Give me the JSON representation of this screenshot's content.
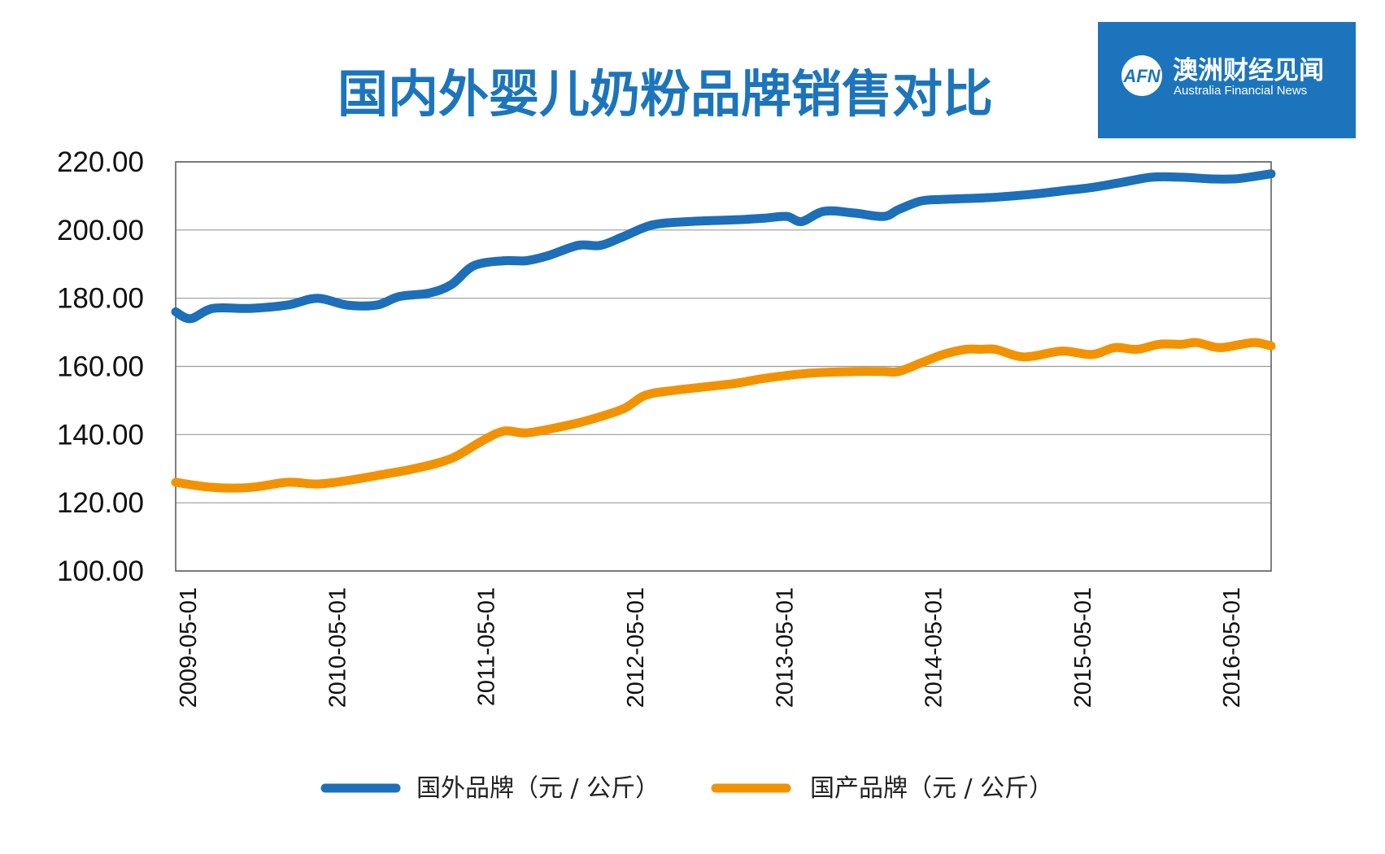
{
  "logo": {
    "mark": "AFN",
    "name_cn": "澳洲财经见闻",
    "name_en": "Australia Financial News",
    "bg_color": "#1c75bc"
  },
  "chart_data": {
    "type": "line",
    "title": "国内外婴儿奶粉品牌销售对比",
    "title_color": "#1c75bc",
    "xlabel": "",
    "ylabel": "",
    "ylim": [
      100,
      220
    ],
    "yticks": [
      "220.00",
      "200.00",
      "180.00",
      "160.00",
      "140.00",
      "120.00",
      "100.00"
    ],
    "ytick_values": [
      220,
      200,
      180,
      160,
      140,
      120,
      100
    ],
    "grid": true,
    "legend_position": "bottom-center",
    "x_start": 2009.25,
    "x_end": 2016.6,
    "xticks": [
      {
        "label": "2009-05-01",
        "x": 2009.333
      },
      {
        "label": "2010-05-01",
        "x": 2010.333
      },
      {
        "label": "2011-05-01",
        "x": 2011.333
      },
      {
        "label": "2012-05-01",
        "x": 2012.333
      },
      {
        "label": "2013-05-01",
        "x": 2013.333
      },
      {
        "label": "2014-05-01",
        "x": 2014.333
      },
      {
        "label": "2015-05-01",
        "x": 2015.333
      },
      {
        "label": "2016-05-01",
        "x": 2016.333
      }
    ],
    "series": [
      {
        "name": "国外品牌（元 / 公斤）",
        "color": "#1c6fb8",
        "x": [
          2009.25,
          2009.35,
          2009.5,
          2009.75,
          2010.0,
          2010.2,
          2010.4,
          2010.6,
          2010.75,
          2010.95,
          2011.1,
          2011.25,
          2011.45,
          2011.6,
          2011.75,
          2011.95,
          2012.1,
          2012.25,
          2012.45,
          2012.7,
          2013.0,
          2013.2,
          2013.35,
          2013.45,
          2013.6,
          2013.8,
          2014.0,
          2014.1,
          2014.25,
          2014.4,
          2014.7,
          2015.0,
          2015.2,
          2015.4,
          2015.6,
          2015.8,
          2016.0,
          2016.2,
          2016.35,
          2016.45,
          2016.6
        ],
        "values": [
          176,
          174,
          177,
          177,
          178,
          180,
          178,
          178,
          180.5,
          181.5,
          184,
          189.5,
          191,
          191,
          192.5,
          195.5,
          195.5,
          198,
          201.5,
          202.5,
          203,
          203.5,
          204,
          202.5,
          205.5,
          205,
          204,
          206,
          208.5,
          209,
          209.5,
          210.5,
          211.5,
          212.5,
          214,
          215.5,
          215.5,
          215,
          215,
          215.5,
          216.5
        ]
      },
      {
        "name": "国产品牌（元 / 公斤）",
        "color": "#f39200",
        "x": [
          2009.25,
          2009.5,
          2009.75,
          2010.0,
          2010.2,
          2010.4,
          2010.6,
          2010.85,
          2011.1,
          2011.3,
          2011.45,
          2011.6,
          2011.8,
          2012.0,
          2012.25,
          2012.4,
          2012.6,
          2013.0,
          2013.2,
          2013.5,
          2013.8,
          2014.0,
          2014.1,
          2014.25,
          2014.4,
          2014.55,
          2014.65,
          2014.75,
          2014.9,
          2015.0,
          2015.2,
          2015.4,
          2015.55,
          2015.7,
          2015.85,
          2016.0,
          2016.1,
          2016.25,
          2016.4,
          2016.5,
          2016.6
        ],
        "values": [
          126,
          124.5,
          124.5,
          126,
          125.5,
          126.5,
          128,
          130,
          133,
          138,
          141,
          140.5,
          142,
          144,
          147.5,
          151.5,
          153,
          155,
          156.5,
          158,
          158.5,
          158.5,
          158.5,
          161,
          163.5,
          165,
          165,
          165,
          163,
          163,
          164.5,
          163.5,
          165.5,
          165,
          166.5,
          166.5,
          167,
          165.5,
          166.5,
          167,
          166
        ]
      }
    ]
  }
}
